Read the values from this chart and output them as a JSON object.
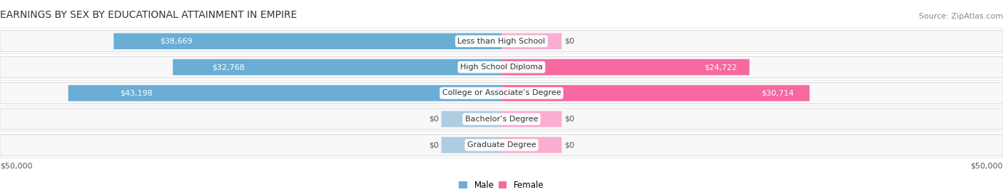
{
  "title": "EARNINGS BY SEX BY EDUCATIONAL ATTAINMENT IN EMPIRE",
  "source": "Source: ZipAtlas.com",
  "categories": [
    "Less than High School",
    "High School Diploma",
    "College or Associate’s Degree",
    "Bachelor’s Degree",
    "Graduate Degree"
  ],
  "male_values": [
    38669,
    32768,
    43198,
    0,
    0
  ],
  "female_values": [
    0,
    24722,
    30714,
    0,
    0
  ],
  "male_color": "#6AAED6",
  "female_color": "#F768A1",
  "male_color_zero": "#AECDE0",
  "female_color_zero": "#FBAED2",
  "row_bg_color": "#EBEBEB",
  "row_bg_inner": "#F8F8F8",
  "max_value": 50000,
  "xlabel_left": "$50,000",
  "xlabel_right": "$50,000",
  "legend_male": "Male",
  "legend_female": "Female",
  "title_fontsize": 10,
  "source_fontsize": 8,
  "label_fontsize": 8,
  "category_fontsize": 8,
  "axis_label_fontsize": 8,
  "background_color": "#FFFFFF",
  "male_label_color_inside": "#FFFFFF",
  "male_label_color_outside": "#555555",
  "female_label_color_inside": "#FFFFFF",
  "female_label_color_outside": "#555555",
  "zero_bar_width": 6000
}
